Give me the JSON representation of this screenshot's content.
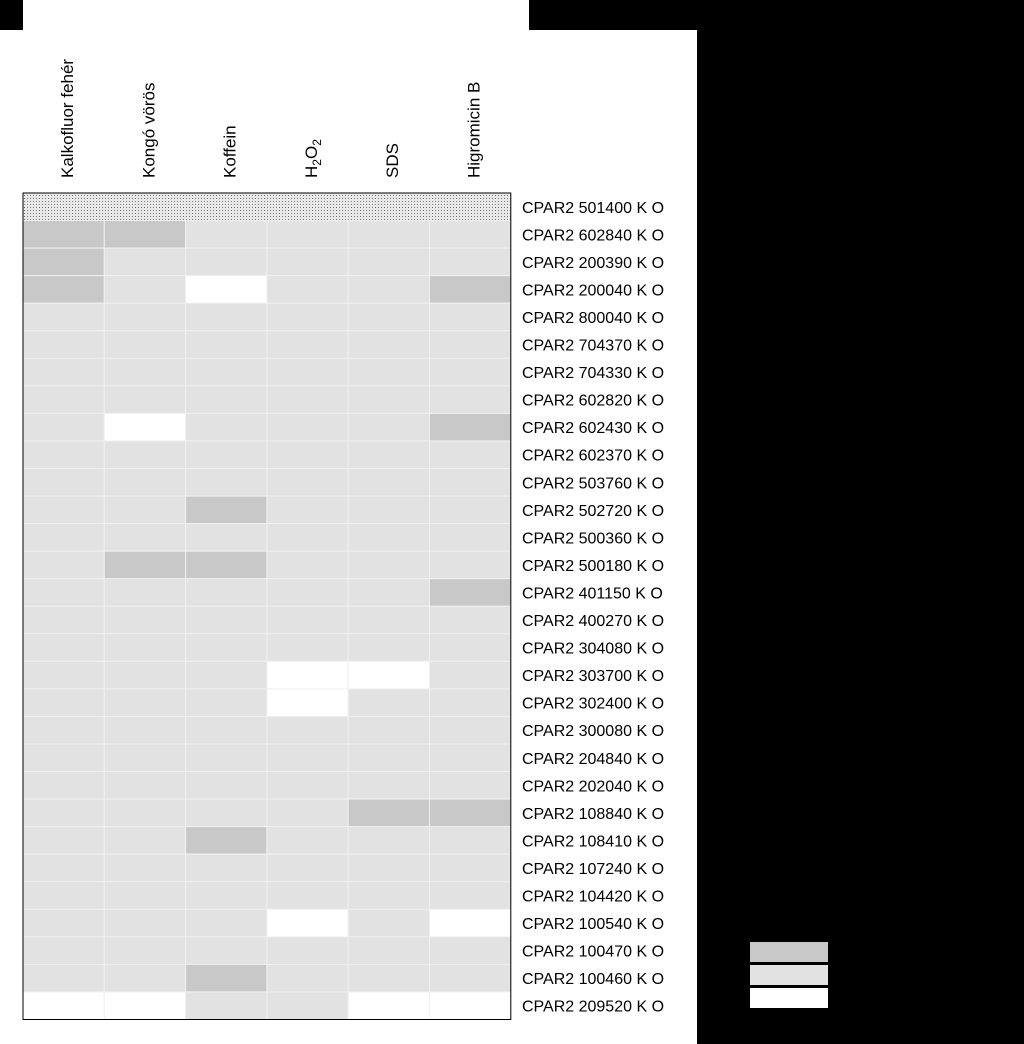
{
  "chart_data": {
    "type": "heatmap",
    "columns": [
      "Kalkofluor fehér",
      "Kongó vörös",
      "Koffein",
      "H2O2",
      "SDS",
      "Higromicin B"
    ],
    "rows": [
      {
        "label": "CPAR2 501400 K  O",
        "values": [
          "x",
          "x",
          "x",
          "x",
          "x",
          "x"
        ]
      },
      {
        "label": "CPAR2 602840 K  O",
        "values": [
          3,
          3,
          2,
          2,
          2,
          2
        ]
      },
      {
        "label": "CPAR2 200390 K  O",
        "values": [
          3,
          2,
          2,
          2,
          2,
          2
        ]
      },
      {
        "label": "CPAR2 200040 K  O",
        "values": [
          3,
          2,
          1,
          2,
          2,
          3
        ]
      },
      {
        "label": "CPAR2 800040 K  O",
        "values": [
          2,
          2,
          2,
          2,
          2,
          2
        ]
      },
      {
        "label": "CPAR2 704370 K  O",
        "values": [
          2,
          2,
          2,
          2,
          2,
          2
        ]
      },
      {
        "label": "CPAR2 704330 K  O",
        "values": [
          2,
          2,
          2,
          2,
          2,
          2
        ]
      },
      {
        "label": "CPAR2 602820 K  O",
        "values": [
          2,
          2,
          2,
          2,
          2,
          2
        ]
      },
      {
        "label": "CPAR2 602430 K  O",
        "values": [
          2,
          1,
          2,
          2,
          2,
          3
        ]
      },
      {
        "label": "CPAR2 602370 K  O",
        "values": [
          2,
          2,
          2,
          2,
          2,
          2
        ]
      },
      {
        "label": "CPAR2 503760 K  O",
        "values": [
          2,
          2,
          2,
          2,
          2,
          2
        ]
      },
      {
        "label": "CPAR2 502720 K  O",
        "values": [
          2,
          2,
          3,
          2,
          2,
          2
        ]
      },
      {
        "label": "CPAR2 500360 K  O",
        "values": [
          2,
          2,
          2,
          2,
          2,
          2
        ]
      },
      {
        "label": "CPAR2 500180 K  O",
        "values": [
          2,
          3,
          3,
          2,
          2,
          2
        ]
      },
      {
        "label": "CPAR2 401150 K  O",
        "values": [
          2,
          2,
          2,
          2,
          2,
          3
        ]
      },
      {
        "label": "CPAR2 400270 K  O",
        "values": [
          2,
          2,
          2,
          2,
          2,
          2
        ]
      },
      {
        "label": "CPAR2 304080 K  O",
        "values": [
          2,
          2,
          2,
          2,
          2,
          2
        ]
      },
      {
        "label": "CPAR2 303700 K  O",
        "values": [
          2,
          2,
          2,
          1,
          1,
          2
        ]
      },
      {
        "label": "CPAR2 302400 K  O",
        "values": [
          2,
          2,
          2,
          1,
          2,
          2
        ]
      },
      {
        "label": "CPAR2 300080 K  O",
        "values": [
          2,
          2,
          2,
          2,
          2,
          2
        ]
      },
      {
        "label": "CPAR2 204840 K  O",
        "values": [
          2,
          2,
          2,
          2,
          2,
          2
        ]
      },
      {
        "label": "CPAR2 202040 K  O",
        "values": [
          2,
          2,
          2,
          2,
          2,
          2
        ]
      },
      {
        "label": "CPAR2 108840 K  O",
        "values": [
          2,
          2,
          2,
          2,
          3,
          3
        ]
      },
      {
        "label": "CPAR2 108410 K  O",
        "values": [
          2,
          2,
          3,
          2,
          2,
          2
        ]
      },
      {
        "label": "CPAR2 107240 K  O",
        "values": [
          2,
          2,
          2,
          2,
          2,
          2
        ]
      },
      {
        "label": "CPAR2 104420 K  O",
        "values": [
          2,
          2,
          2,
          2,
          2,
          2
        ]
      },
      {
        "label": "CPAR2 100540 K  O",
        "values": [
          2,
          2,
          2,
          1,
          2,
          1
        ]
      },
      {
        "label": "CPAR2 100470 K  O",
        "values": [
          2,
          2,
          2,
          2,
          2,
          2
        ]
      },
      {
        "label": "CPAR2 100460 K  O",
        "values": [
          2,
          2,
          3,
          2,
          2,
          2
        ]
      },
      {
        "label": "CPAR2 209520 K  O",
        "values": [
          1,
          1,
          2,
          2,
          1,
          1
        ]
      }
    ],
    "levels": [
      {
        "value": 3,
        "color": "#c8c8c8"
      },
      {
        "value": 2,
        "color": "#e2e2e2"
      },
      {
        "value": 1,
        "color": "#ffffff"
      }
    ],
    "pattern_value": "x",
    "legend_labels": [
      "",
      "",
      ""
    ],
    "legend_placement": "bottom-right"
  },
  "colors": {
    "background": "#000000",
    "panel": "#ffffff",
    "grid_line": "#f0f0f0",
    "pattern_fill": "#e8e8e8",
    "pattern_dot": "#777777",
    "border": "#000000"
  }
}
